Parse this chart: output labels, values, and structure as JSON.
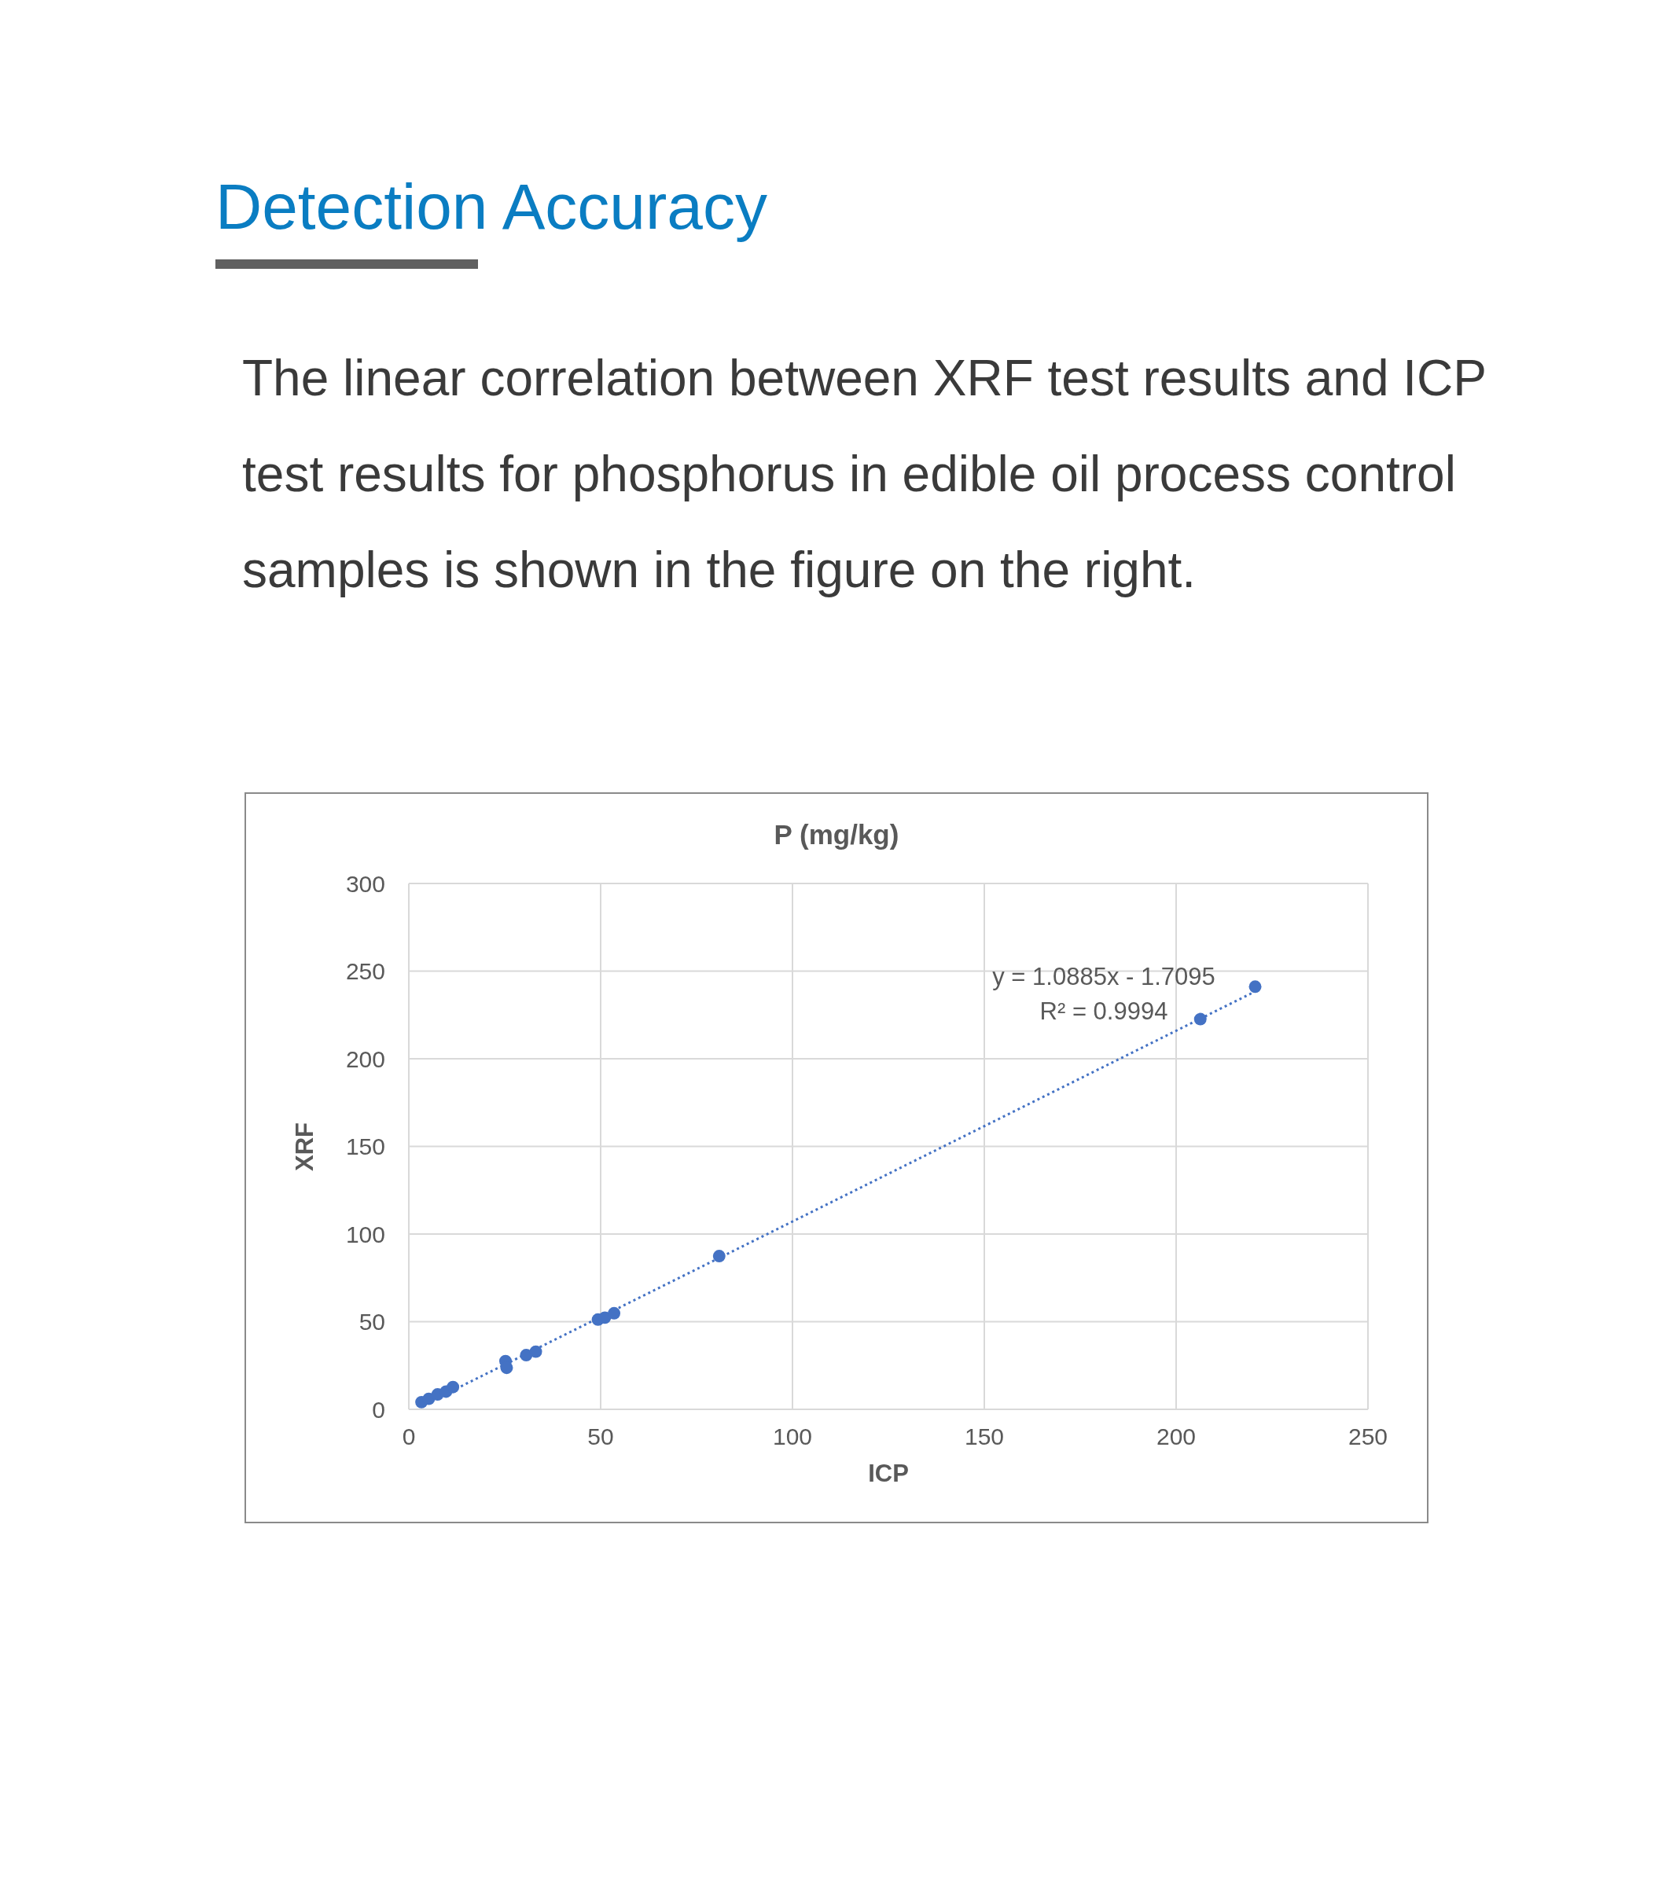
{
  "chart_data": {
    "type": "scatter",
    "title": "Detection Accuracy",
    "subtitle": "The linear correlation between XRF test results and ICP test results for phosphorus in edible oil process control samples is shown in the figure on the right.",
    "xlabel": "ICP",
    "ylabel": "XRF",
    "annotations": [
      "P (mg/kg)",
      "y = 1.0885x - 1.7095",
      "R² = 0.9994"
    ],
    "xlim": [
      0,
      250
    ],
    "xticks": [
      0,
      50,
      100,
      150,
      200,
      250
    ],
    "ylim": [
      0,
      300
    ],
    "yticks": [
      0,
      50,
      100,
      150,
      200,
      250,
      300
    ],
    "grid": true,
    "line_style": "dotted",
    "series": [
      {
        "color": "#4472c4",
        "marker": "circle",
        "x": [
          3.3,
          5.2,
          7.5,
          9.7,
          11.5,
          25.2,
          25.5,
          30.6,
          33.1,
          49.3,
          51.1,
          53.5,
          80.9,
          206.3,
          220.6
        ],
        "values": [
          4.1,
          6.0,
          8.5,
          10.1,
          12.7,
          27.5,
          23.7,
          30.9,
          32.9,
          51.2,
          52.3,
          54.8,
          87.4,
          222.6,
          241.1
        ]
      },
      {
        "type": "line",
        "marker": "none",
        "color": "#4472c4",
        "x": [
          3.3,
          220.6
        ],
        "values": [
          1.9,
          238.4
        ]
      }
    ]
  }
}
